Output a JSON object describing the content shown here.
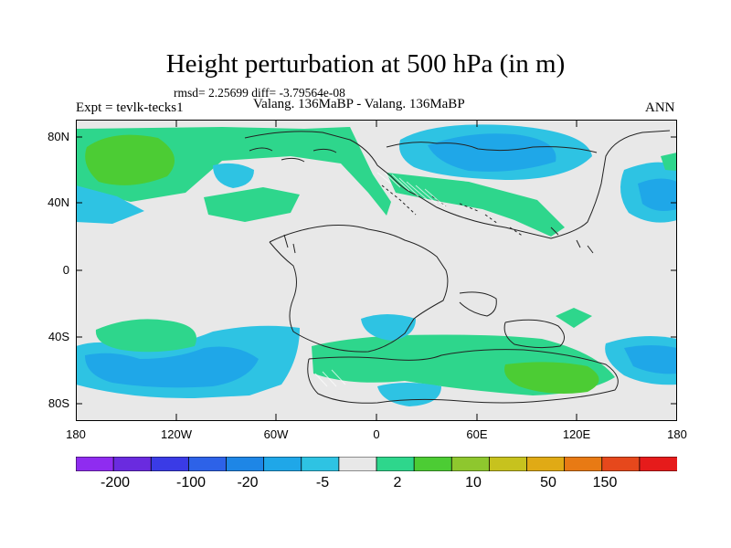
{
  "title": "Height perturbation at 500 hPa (in m)",
  "stats": "rmsd= 2.25699 diff= -3.79564e-08",
  "expt": "Expt = tevlk-tecks1",
  "subtitle": "Valang. 136MaBP - Valang. 136MaBP",
  "season": "ANN",
  "lat_labels": [
    "80N",
    "40N",
    "0",
    "40S",
    "80S"
  ],
  "lon_labels": [
    "180",
    "120W",
    "60W",
    "0",
    "60E",
    "120E",
    "180"
  ],
  "colorbar": {
    "colors": [
      "#8f2cf0",
      "#6a2bdf",
      "#3a3be6",
      "#2d62e8",
      "#1e86e6",
      "#1fa7e8",
      "#2ec3e3",
      "#e8e8e8",
      "#2ed68c",
      "#4ccc34",
      "#8ec72e",
      "#c7c21e",
      "#e0aa15",
      "#e87a14",
      "#e6481c",
      "#e61b1b"
    ],
    "labels": [
      "-200",
      "-100",
      "-20",
      "-5",
      "2",
      "10",
      "50",
      "150"
    ]
  },
  "legend_colors": {
    "background": "#e8e8e8",
    "light_blue": "#2ec3e3",
    "mid_blue": "#1fa7e8",
    "deep_blue": "#1e86e6",
    "green": "#2ed68c",
    "lime": "#4ccc34"
  }
}
